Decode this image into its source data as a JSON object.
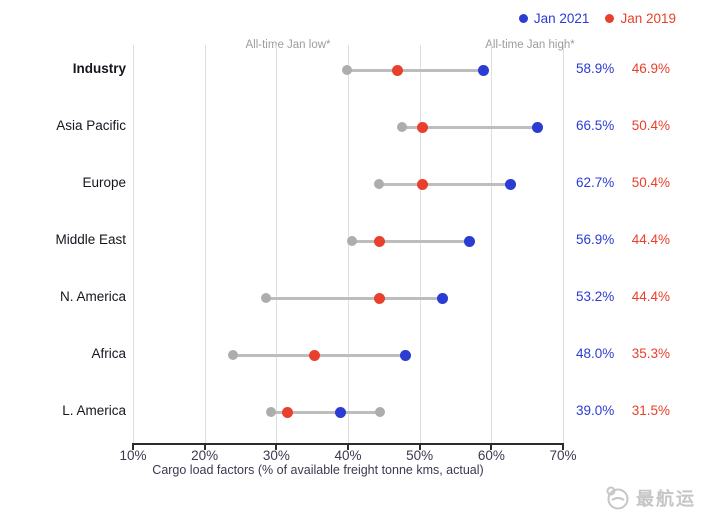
{
  "colors": {
    "jan2021": "#2b3cd2",
    "jan2019": "#e8402d",
    "range_gray": "#bdbdbd",
    "all_time_dot_gray": "#adadad",
    "gridline": "#dedede",
    "axis": "#2c2c2c",
    "annotation_gray": "#9d9d9d"
  },
  "legend": [
    {
      "label": "Jan 2021",
      "color": "#2b3cd2"
    },
    {
      "label": "Jan 2019",
      "color": "#e8402d"
    }
  ],
  "annotations": {
    "low": "All-time Jan low*",
    "high": "All-time Jan high*"
  },
  "chart_data": {
    "type": "scatter",
    "subtype": "dot-plot-with-range",
    "categories": [
      "Industry",
      "Asia Pacific",
      "Europe",
      "Middle East",
      "N. America",
      "Africa",
      "L. America"
    ],
    "series": [
      {
        "name": "Jan 2021",
        "values": [
          58.9,
          66.5,
          62.7,
          56.9,
          53.2,
          48.0,
          39.0
        ]
      },
      {
        "name": "Jan 2019",
        "values": [
          46.9,
          50.4,
          50.4,
          44.4,
          44.4,
          35.3,
          31.5
        ]
      },
      {
        "name": "All-time Jan low",
        "values": [
          39.8,
          47.5,
          44.3,
          40.5,
          28.5,
          24.0,
          29.3
        ]
      },
      {
        "name": "All-time Jan high",
        "values": [
          58.9,
          66.5,
          62.7,
          56.9,
          53.2,
          48.0,
          44.5
        ]
      }
    ],
    "value_labels": [
      [
        "58.9%",
        "46.9%"
      ],
      [
        "66.5%",
        "50.4%"
      ],
      [
        "62.7%",
        "50.4%"
      ],
      [
        "56.9%",
        "44.4%"
      ],
      [
        "53.2%",
        "44.4%"
      ],
      [
        "48.0%",
        "35.3%"
      ],
      [
        "39.0%",
        "31.5%"
      ]
    ],
    "xlabel": "Cargo load factors (% of available freight tonne kms, actual)",
    "x_ticks": [
      "10%",
      "20%",
      "30%",
      "40%",
      "50%",
      "60%",
      "70%"
    ],
    "x_tick_values": [
      10,
      20,
      30,
      40,
      50,
      60,
      70
    ],
    "xlim": [
      10,
      70
    ],
    "grid": "vertical",
    "legend_position": "top-right"
  },
  "watermark": {
    "text": "最航运"
  }
}
